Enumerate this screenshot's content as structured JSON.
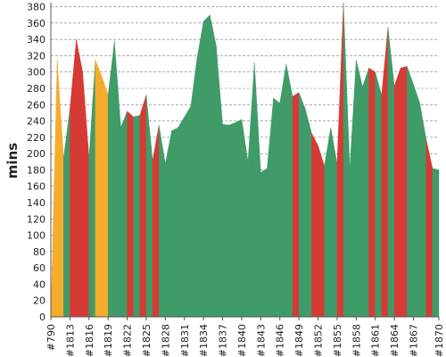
{
  "chart_data": {
    "type": "area",
    "title": "",
    "xlabel": "",
    "ylabel": "mins",
    "ylim": [
      0,
      385
    ],
    "yticks": [
      0,
      20,
      40,
      60,
      80,
      100,
      120,
      140,
      160,
      180,
      200,
      220,
      240,
      260,
      280,
      300,
      320,
      340,
      360,
      380
    ],
    "grid": true,
    "legend": "none",
    "status_colors": {
      "pass": "#3f9b67",
      "fail": "#d63a35",
      "warn": "#f5ac2c"
    },
    "x_tick_labels": [
      "#790",
      "#1813",
      "#1816",
      "#1819",
      "#1822",
      "#1825",
      "#1828",
      "#1831",
      "#1834",
      "#1837",
      "#1840",
      "#1843",
      "#1846",
      "#1849",
      "#1852",
      "#1855",
      "#1858",
      "#1861",
      "#1864",
      "#1867",
      "#1870"
    ],
    "points": [
      {
        "build": "#790",
        "x": 0.0,
        "value": 0,
        "status": "pass"
      },
      {
        "build": "",
        "x": 0.5,
        "value": 315,
        "status": "warn"
      },
      {
        "build": "",
        "x": 1.0,
        "value": 195,
        "status": "warn"
      },
      {
        "build": "#1813",
        "x": 1.5,
        "value": 255,
        "status": "pass"
      },
      {
        "build": "",
        "x": 2.0,
        "value": 340,
        "status": "fail"
      },
      {
        "build": "",
        "x": 2.5,
        "value": 300,
        "status": "fail"
      },
      {
        "build": "#1816",
        "x": 3.0,
        "value": 195,
        "status": "fail"
      },
      {
        "build": "",
        "x": 3.5,
        "value": 315,
        "status": "pass"
      },
      {
        "build": "",
        "x": 4.0,
        "value": 295,
        "status": "warn"
      },
      {
        "build": "#1819",
        "x": 4.5,
        "value": 272,
        "status": "warn"
      },
      {
        "build": "",
        "x": 5.0,
        "value": 338,
        "status": "pass"
      },
      {
        "build": "",
        "x": 5.5,
        "value": 232,
        "status": "pass"
      },
      {
        "build": "#1822",
        "x": 6.0,
        "value": 252,
        "status": "pass"
      },
      {
        "build": "",
        "x": 6.5,
        "value": 245,
        "status": "fail"
      },
      {
        "build": "",
        "x": 7.0,
        "value": 247,
        "status": "pass"
      },
      {
        "build": "#1825",
        "x": 7.5,
        "value": 272,
        "status": "fail"
      },
      {
        "build": "",
        "x": 8.0,
        "value": 192,
        "status": "pass"
      },
      {
        "build": "",
        "x": 8.5,
        "value": 235,
        "status": "fail"
      },
      {
        "build": "#1828",
        "x": 9.0,
        "value": 188,
        "status": "pass"
      },
      {
        "build": "",
        "x": 9.5,
        "value": 228,
        "status": "pass"
      },
      {
        "build": "",
        "x": 10.0,
        "value": 232,
        "status": "pass"
      },
      {
        "build": "#1831",
        "x": 10.5,
        "value": 245,
        "status": "pass"
      },
      {
        "build": "",
        "x": 11.0,
        "value": 258,
        "status": "pass"
      },
      {
        "build": "",
        "x": 11.5,
        "value": 318,
        "status": "pass"
      },
      {
        "build": "#1834",
        "x": 12.0,
        "value": 362,
        "status": "pass"
      },
      {
        "build": "",
        "x": 12.5,
        "value": 370,
        "status": "pass"
      },
      {
        "build": "",
        "x": 13.0,
        "value": 332,
        "status": "pass"
      },
      {
        "build": "#1837",
        "x": 13.5,
        "value": 236,
        "status": "pass"
      },
      {
        "build": "",
        "x": 14.0,
        "value": 235,
        "status": "pass"
      },
      {
        "build": "",
        "x": 14.5,
        "value": 238,
        "status": "pass"
      },
      {
        "build": "#1840",
        "x": 15.0,
        "value": 242,
        "status": "pass"
      },
      {
        "build": "",
        "x": 15.5,
        "value": 190,
        "status": "pass"
      },
      {
        "build": "",
        "x": 16.0,
        "value": 312,
        "status": "pass"
      },
      {
        "build": "#1843",
        "x": 16.5,
        "value": 177,
        "status": "pass"
      },
      {
        "build": "",
        "x": 17.0,
        "value": 182,
        "status": "pass"
      },
      {
        "build": "",
        "x": 17.5,
        "value": 268,
        "status": "pass"
      },
      {
        "build": "#1846",
        "x": 18.0,
        "value": 262,
        "status": "pass"
      },
      {
        "build": "",
        "x": 18.5,
        "value": 310,
        "status": "pass"
      },
      {
        "build": "",
        "x": 19.0,
        "value": 270,
        "status": "pass"
      },
      {
        "build": "#1849",
        "x": 19.5,
        "value": 275,
        "status": "fail"
      },
      {
        "build": "",
        "x": 20.0,
        "value": 255,
        "status": "pass"
      },
      {
        "build": "",
        "x": 20.5,
        "value": 225,
        "status": "pass"
      },
      {
        "build": "#1852",
        "x": 21.0,
        "value": 210,
        "status": "fail"
      },
      {
        "build": "",
        "x": 21.5,
        "value": 185,
        "status": "fail"
      },
      {
        "build": "",
        "x": 22.0,
        "value": 232,
        "status": "pass"
      },
      {
        "build": "#1855",
        "x": 22.5,
        "value": 188,
        "status": "pass"
      },
      {
        "build": "",
        "x": 23.0,
        "value": 385,
        "status": "fail"
      },
      {
        "build": "",
        "x": 23.5,
        "value": 182,
        "status": "pass"
      },
      {
        "build": "#1858",
        "x": 24.0,
        "value": 315,
        "status": "pass"
      },
      {
        "build": "",
        "x": 24.5,
        "value": 282,
        "status": "pass"
      },
      {
        "build": "",
        "x": 25.0,
        "value": 305,
        "status": "pass"
      },
      {
        "build": "#1861",
        "x": 25.5,
        "value": 300,
        "status": "fail"
      },
      {
        "build": "",
        "x": 26.0,
        "value": 272,
        "status": "pass"
      },
      {
        "build": "",
        "x": 26.5,
        "value": 355,
        "status": "fail"
      },
      {
        "build": "#1864",
        "x": 27.0,
        "value": 283,
        "status": "pass"
      },
      {
        "build": "",
        "x": 27.5,
        "value": 305,
        "status": "fail"
      },
      {
        "build": "",
        "x": 28.0,
        "value": 307,
        "status": "fail"
      },
      {
        "build": "#1867",
        "x": 28.5,
        "value": 285,
        "status": "pass"
      },
      {
        "build": "",
        "x": 29.0,
        "value": 262,
        "status": "pass"
      },
      {
        "build": "",
        "x": 29.5,
        "value": 218,
        "status": "pass"
      },
      {
        "build": "",
        "x": 30.0,
        "value": 182,
        "status": "fail"
      },
      {
        "build": "#1870",
        "x": 30.5,
        "value": 180,
        "status": "pass"
      }
    ]
  }
}
